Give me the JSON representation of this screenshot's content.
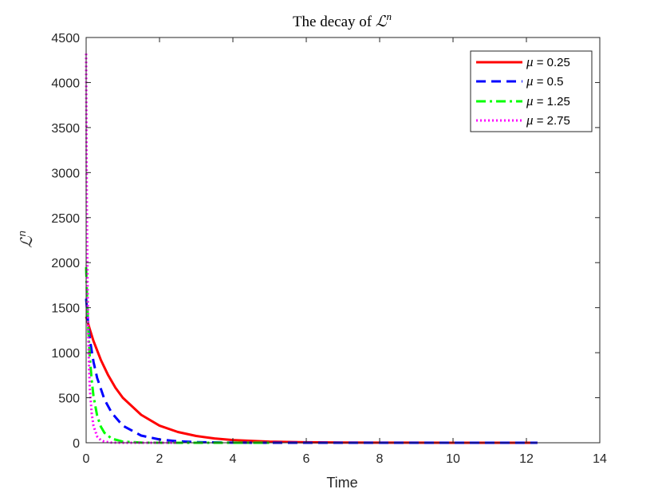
{
  "chart_data": {
    "type": "line",
    "title_prefix": "The decay of ",
    "title_symbol": "ℒ",
    "title_superscript": "n",
    "xlabel": "Time",
    "ylabel_symbol": "ℒ",
    "ylabel_superscript": "n",
    "xlim": [
      0,
      14
    ],
    "ylim": [
      0,
      4500
    ],
    "xticks": [
      0,
      2,
      4,
      6,
      8,
      10,
      12,
      14
    ],
    "yticks": [
      0,
      500,
      1000,
      1500,
      2000,
      2500,
      3000,
      3500,
      4000,
      4500
    ],
    "grid": false,
    "legend_position": "top-right",
    "series": [
      {
        "name": "μ = 0.25",
        "legend_symbol": "μ",
        "legend_value": " = 0.25",
        "color": "#ff0000",
        "style": "solid",
        "x": [
          0,
          0.05,
          0.1,
          0.2,
          0.4,
          0.6,
          0.8,
          1.0,
          1.5,
          2.0,
          2.5,
          3.0,
          3.5,
          4.0,
          5.0,
          6.0,
          7.0,
          8.0,
          10.0,
          12.3
        ],
        "y": [
          1400,
          1330,
          1260,
          1130,
          920,
          750,
          610,
          500,
          310,
          190,
          120,
          75,
          48,
          30,
          12,
          5,
          2,
          1,
          0,
          0
        ]
      },
      {
        "name": "μ = 0.5",
        "legend_symbol": "μ",
        "legend_value": " = 0.5",
        "color": "#0000ff",
        "style": "dashed",
        "x": [
          0,
          0.05,
          0.1,
          0.2,
          0.3,
          0.5,
          0.7,
          1.0,
          1.5,
          2.0,
          2.5,
          3.0,
          4.0,
          5.0,
          6.0,
          8.0,
          10.0,
          12.3
        ],
        "y": [
          1600,
          1350,
          1150,
          900,
          720,
          480,
          330,
          190,
          80,
          36,
          16,
          7,
          1,
          0,
          0,
          0,
          0,
          0
        ]
      },
      {
        "name": "μ = 1.25",
        "legend_symbol": "μ",
        "legend_value": " = 1.25",
        "color": "#00ff00",
        "style": "dashdot",
        "x": [
          0,
          0.03,
          0.06,
          0.1,
          0.15,
          0.2,
          0.3,
          0.4,
          0.5,
          0.7,
          1.0,
          1.5,
          2.0,
          3.0,
          4.0,
          5.0
        ],
        "y": [
          1950,
          1550,
          1250,
          950,
          700,
          520,
          300,
          180,
          110,
          45,
          12,
          2,
          0,
          0,
          0,
          0
        ]
      },
      {
        "name": "μ = 2.75",
        "legend_symbol": "μ",
        "legend_value": " = 2.75",
        "color": "#ff00ff",
        "style": "dotted",
        "x": [
          0,
          0.01,
          0.02,
          0.04,
          0.06,
          0.08,
          0.1,
          0.15,
          0.2,
          0.3,
          0.4,
          0.5,
          0.7,
          1.0,
          1.5,
          2.5
        ],
        "y": [
          4320,
          3300,
          2600,
          1700,
          1150,
          820,
          600,
          330,
          190,
          70,
          28,
          12,
          2,
          0,
          0,
          0
        ]
      }
    ]
  }
}
